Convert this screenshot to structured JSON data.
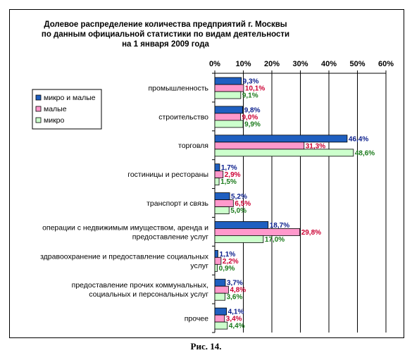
{
  "caption": "Рис. 14.",
  "chart_data": {
    "type": "bar",
    "orientation": "horizontal",
    "title": [
      "Долевое распределение количества предприятий г. Москвы",
      "по данным официальной статистики по видам деятельности",
      "на 1 января 2009 года"
    ],
    "xlim": [
      0,
      60
    ],
    "x_ticks": [
      0,
      10,
      20,
      30,
      40,
      50,
      60
    ],
    "x_tick_labels": [
      "0%",
      "10%",
      "20%",
      "30%",
      "40%",
      "50%",
      "60%"
    ],
    "x_axis_position": "top",
    "grid": true,
    "legend_position": "left",
    "categories": [
      [
        "промышленность"
      ],
      [
        "строительство"
      ],
      [
        "торговля"
      ],
      [
        "гостиницы и рестораны"
      ],
      [
        "транспорт и связь"
      ],
      [
        "операции с недвижимым имуществом, аренда и",
        "предоставление услуг"
      ],
      [
        "здравоохранение и предоставление социальных",
        "услуг"
      ],
      [
        "предоставление прочих коммунальных,",
        "социальных и персональных услуг"
      ],
      [
        "прочее"
      ]
    ],
    "series": [
      {
        "name": "микро и малые",
        "color": "#1f5fc0",
        "label_color": "#0a1e8c",
        "values": [
          9.3,
          9.8,
          46.4,
          1.7,
          5.2,
          18.7,
          1.1,
          3.7,
          4.1
        ],
        "labels": [
          "9,3%",
          "9,8%",
          "46,4%",
          "1,7%",
          "5,2%",
          "18,7%",
          "1,1%",
          "3,7%",
          "4,1%"
        ]
      },
      {
        "name": "малые",
        "color": "#ff99cc",
        "label_color": "#cc0033",
        "values": [
          10.1,
          9.0,
          31.3,
          2.9,
          6.5,
          29.8,
          2.2,
          4.8,
          3.4
        ],
        "labels": [
          "10,1%",
          "9,0%",
          "31,3%",
          "2,9%",
          "6,5%",
          "29,8%",
          "2,2%",
          "4,8%",
          "3,4%"
        ]
      },
      {
        "name": "микро",
        "color": "#ccffcc",
        "label_color": "#1a7a1a",
        "values": [
          9.1,
          9.9,
          48.6,
          1.5,
          5.0,
          17.0,
          0.9,
          3.6,
          4.4
        ],
        "labels": [
          "9,1%",
          "9,9%",
          "48,6%",
          "1,5%",
          "5,0%",
          "17,0%",
          "0,9%",
          "3,6%",
          "4,4%"
        ]
      }
    ]
  }
}
